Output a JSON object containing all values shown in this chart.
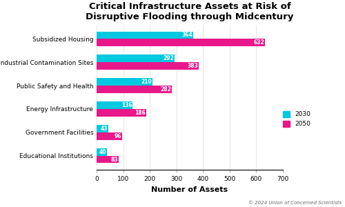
{
  "title": "Critical Infrastructure Assets at Risk of\nDisruptive Flooding through Midcentury",
  "categories": [
    "Educational Institutions",
    "Government Facilities",
    "Energy Infrastructure",
    "Public Safety and Health",
    "Industrial Contamination Sites",
    "Subsidized Housing"
  ],
  "values_2030": [
    40,
    43,
    136,
    210,
    292,
    364
  ],
  "values_2050": [
    83,
    96,
    186,
    282,
    383,
    632
  ],
  "color_2030": "#00c8e0",
  "color_2050": "#e8178a",
  "xlabel": "Number of Assets",
  "xlim": [
    0,
    700
  ],
  "xticks": [
    0,
    100,
    200,
    300,
    400,
    500,
    600,
    700
  ],
  "bar_height": 0.32,
  "legend_labels": [
    "2030",
    "2050"
  ],
  "footnote": "© 2024 Union of Concerned Scientists",
  "title_fontsize": 9.5,
  "xlabel_fontsize": 8,
  "tick_fontsize": 6.5,
  "value_fontsize": 5.5,
  "background_color": "#ffffff"
}
